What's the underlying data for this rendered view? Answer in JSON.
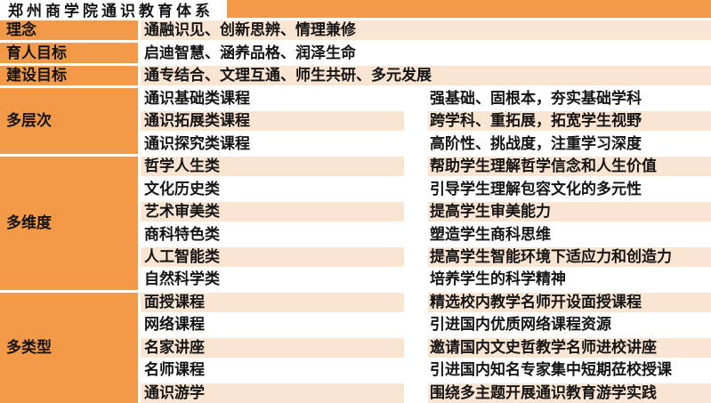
{
  "title": "郑州商学院通识教育体系",
  "colors": {
    "orange": "#F39A48",
    "peach": "#FAE5D2",
    "text": "#141414",
    "row_white": "#FFFFFF"
  },
  "simple_rows": [
    {
      "label": "理念",
      "content": "通融识见、创新思辨、情理兼修"
    },
    {
      "label": "育人目标",
      "content": "启迪智慧、涵养品格、润泽生命"
    },
    {
      "label": "建设目标",
      "content": "通专结合、文理互通、师生共研、多元发展"
    }
  ],
  "sections": [
    {
      "label": "多层次",
      "rows": [
        {
          "type": "通识基础类课程",
          "desc": "强基础、固根本，夯实基础学科"
        },
        {
          "type": "通识拓展类课程",
          "desc": "跨学科、重拓展，拓宽学生视野"
        },
        {
          "type": "通识探究类课程",
          "desc": "高阶性、挑战度，注重学习深度"
        }
      ]
    },
    {
      "label": "多维度",
      "rows": [
        {
          "type": "哲学人生类",
          "desc": "帮助学生理解哲学信念和人生价值"
        },
        {
          "type": "文化历史类",
          "desc": "引导学生理解包容文化的多元性"
        },
        {
          "type": "艺术审美类",
          "desc": "提高学生审美能力"
        },
        {
          "type": "商科特色类",
          "desc": "塑造学生商科思维"
        },
        {
          "type": "人工智能类",
          "desc": "提高学生智能环境下适应力和创造力"
        },
        {
          "type": "自然科学类",
          "desc": "培养学生的科学精神"
        }
      ]
    },
    {
      "label": "多类型",
      "rows": [
        {
          "type": "面授课程",
          "desc": "精选校内教学名师开设面授课程"
        },
        {
          "type": "网络课程",
          "desc": "引进国内优质网络课程资源"
        },
        {
          "type": "名家讲座",
          "desc": "邀请国内文史哲教学名师进校讲座"
        },
        {
          "type": "名师课程",
          "desc": "引进国内知名专家集中短期莅校授课"
        },
        {
          "type": "通识游学",
          "desc": "围绕多主题开展通识教育游学实践"
        }
      ]
    }
  ]
}
